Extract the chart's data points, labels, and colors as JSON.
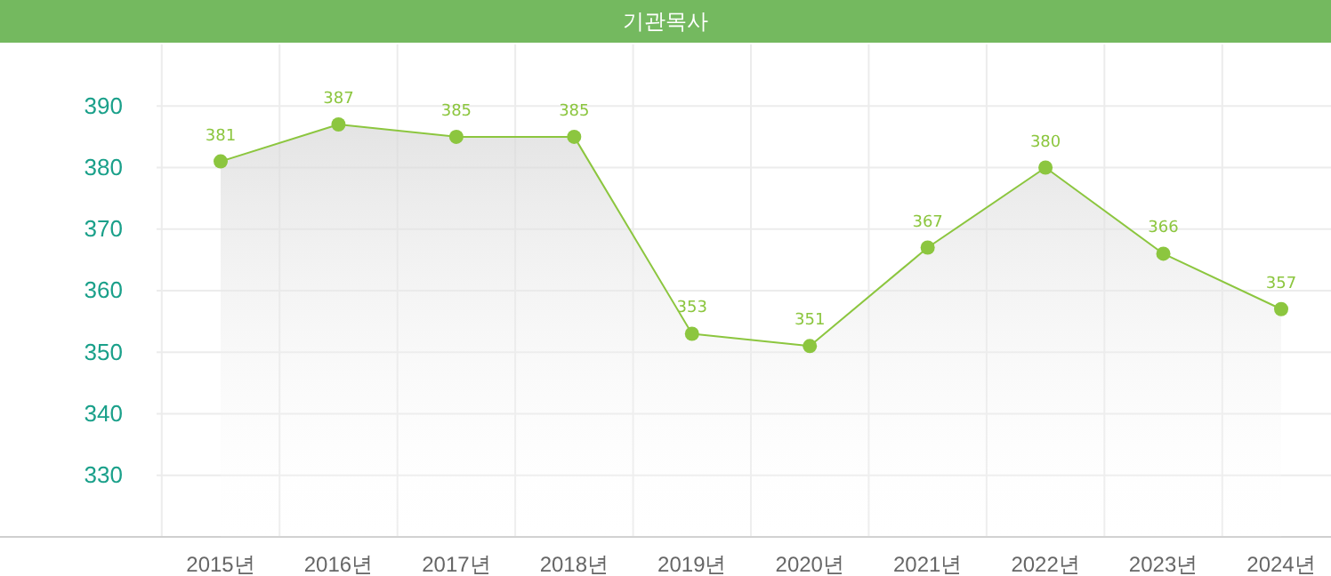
{
  "chart_data": {
    "type": "area",
    "title": "기관목사",
    "categories": [
      "2015년",
      "2016년",
      "2017년",
      "2018년",
      "2019년",
      "2020년",
      "2021년",
      "2022년",
      "2023년",
      "2024년"
    ],
    "series": [
      {
        "color": "#8cc63f",
        "values": [
          381,
          387,
          385,
          385,
          353,
          351,
          367,
          380,
          366,
          357
        ]
      }
    ],
    "ylim": [
      320,
      400
    ],
    "yticks": [
      330,
      340,
      350,
      360,
      370,
      380,
      390
    ],
    "grid": true,
    "data_labels": true,
    "marker": "circle"
  }
}
